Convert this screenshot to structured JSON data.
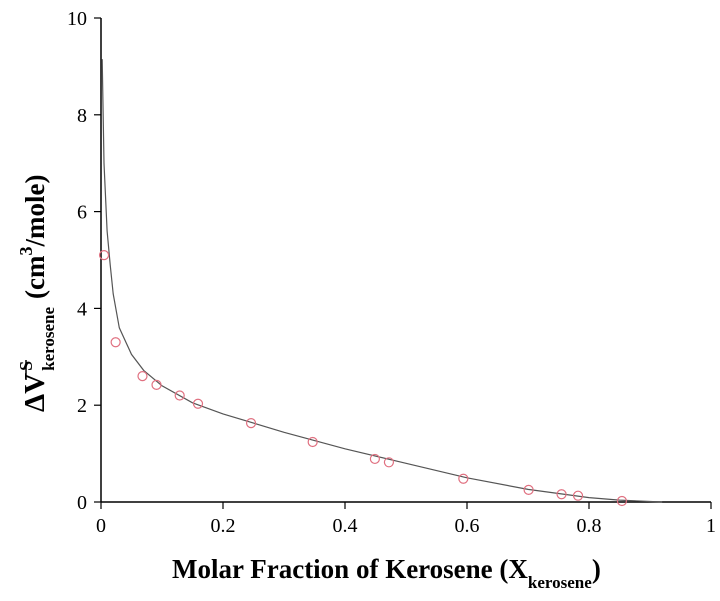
{
  "chart_data": {
    "type": "scatter",
    "xlabel": {
      "main": "Molar Fraction of Kerosene (X",
      "sub": "kerosene",
      "close": ")"
    },
    "ylabel": {
      "symbol": "ΔV",
      "sup": "S",
      "sub": "kerosene",
      "unit_open": "(cm",
      "unit_sup": "3",
      "unit_close": "/mole)"
    },
    "xlim": [
      0,
      1
    ],
    "ylim": [
      0,
      10
    ],
    "x_ticks": [
      "0",
      "0.2",
      "0.4",
      "0.6",
      "0.8",
      "1"
    ],
    "y_ticks": [
      "0",
      "2",
      "4",
      "6",
      "8",
      "10"
    ],
    "grid": false,
    "colors": {
      "points": "#e07080",
      "curve": "#555555",
      "axis": "#000000"
    },
    "series": [
      {
        "kind": "points",
        "marker": "open-circle",
        "x": [
          0.005,
          0.024,
          0.068,
          0.091,
          0.129,
          0.159,
          0.246,
          0.347,
          0.449,
          0.472,
          0.594,
          0.701,
          0.755,
          0.782,
          0.854
        ],
        "y": [
          5.1,
          3.3,
          2.6,
          2.42,
          2.2,
          2.03,
          1.63,
          1.24,
          0.89,
          0.82,
          0.48,
          0.25,
          0.16,
          0.13,
          0.02
        ]
      },
      {
        "kind": "fit-line",
        "x": [
          0.002,
          0.005,
          0.01,
          0.015,
          0.02,
          0.03,
          0.05,
          0.07,
          0.1,
          0.15,
          0.2,
          0.3,
          0.4,
          0.5,
          0.6,
          0.7,
          0.8,
          0.85,
          0.9,
          0.92
        ],
        "y": [
          9.15,
          7.0,
          5.6,
          4.9,
          4.3,
          3.6,
          3.05,
          2.72,
          2.4,
          2.05,
          1.82,
          1.44,
          1.1,
          0.8,
          0.5,
          0.26,
          0.09,
          0.04,
          0.01,
          0.0
        ]
      }
    ]
  }
}
